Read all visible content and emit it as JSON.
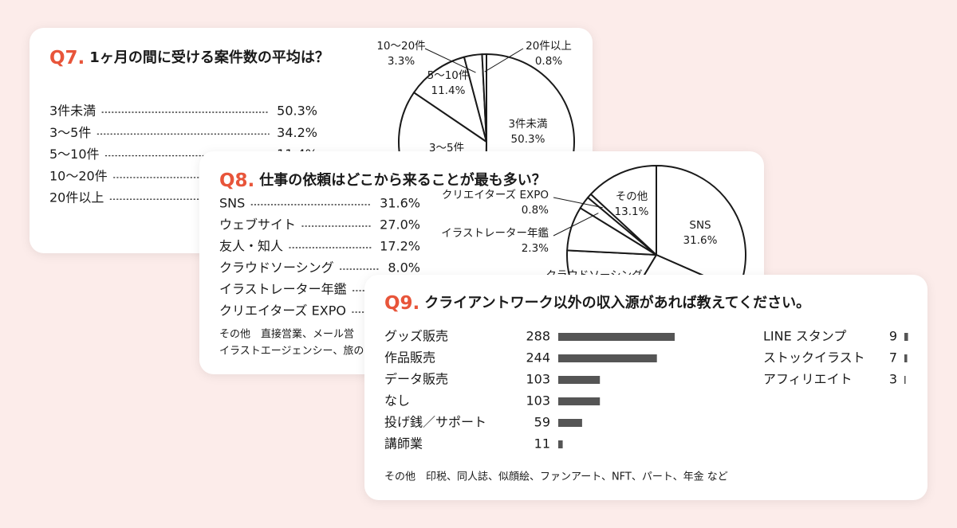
{
  "chart_data": [
    {
      "type": "pie",
      "label": "Q7.",
      "title": "1ヶ月の間に受ける案件数の平均は？",
      "categories": [
        "3件未満",
        "3〜5件",
        "5〜10件",
        "10〜20件",
        "20件以上"
      ],
      "values": [
        50.3,
        34.2,
        11.4,
        3.3,
        0.8
      ],
      "value_labels": [
        "50.3%",
        "34.2%",
        "11.4%",
        "3.3%",
        "0.8%"
      ]
    },
    {
      "type": "pie",
      "label": "Q8.",
      "title": "仕事の依頼はどこから来ることが最も多い？",
      "categories": [
        "SNS",
        "ウェブサイト",
        "友人・知人",
        "クラウドソーシング",
        "イラストレーター年鑑",
        "クリエイターズ EXPO",
        "その他"
      ],
      "values": [
        31.6,
        27.0,
        17.2,
        8.0,
        2.3,
        0.8,
        13.1
      ],
      "value_labels": [
        "31.6%",
        "27.0%",
        "17.2%",
        "8.0%",
        "2.3%",
        "0.8%",
        "13.1%"
      ],
      "notes": [
        "その他　直接営業、メール営",
        "イラストエージェンシー、旅の"
      ]
    },
    {
      "type": "bar",
      "label": "Q9.",
      "title": "クライアントワーク以外の収入源があれば教えてください。",
      "categories": [
        "グッズ販売",
        "作品販売",
        "データ販売",
        "なし",
        "投げ銭／サポート",
        "講師業",
        "LINE スタンプ",
        "ストックイラスト",
        "アフィリエイト"
      ],
      "values": [
        288,
        244,
        103,
        103,
        59,
        11,
        9,
        7,
        3
      ],
      "color": "#555555",
      "note": "その他　印税、同人誌、似顔絵、ファンアート、NFT、パート、年金 など"
    }
  ]
}
